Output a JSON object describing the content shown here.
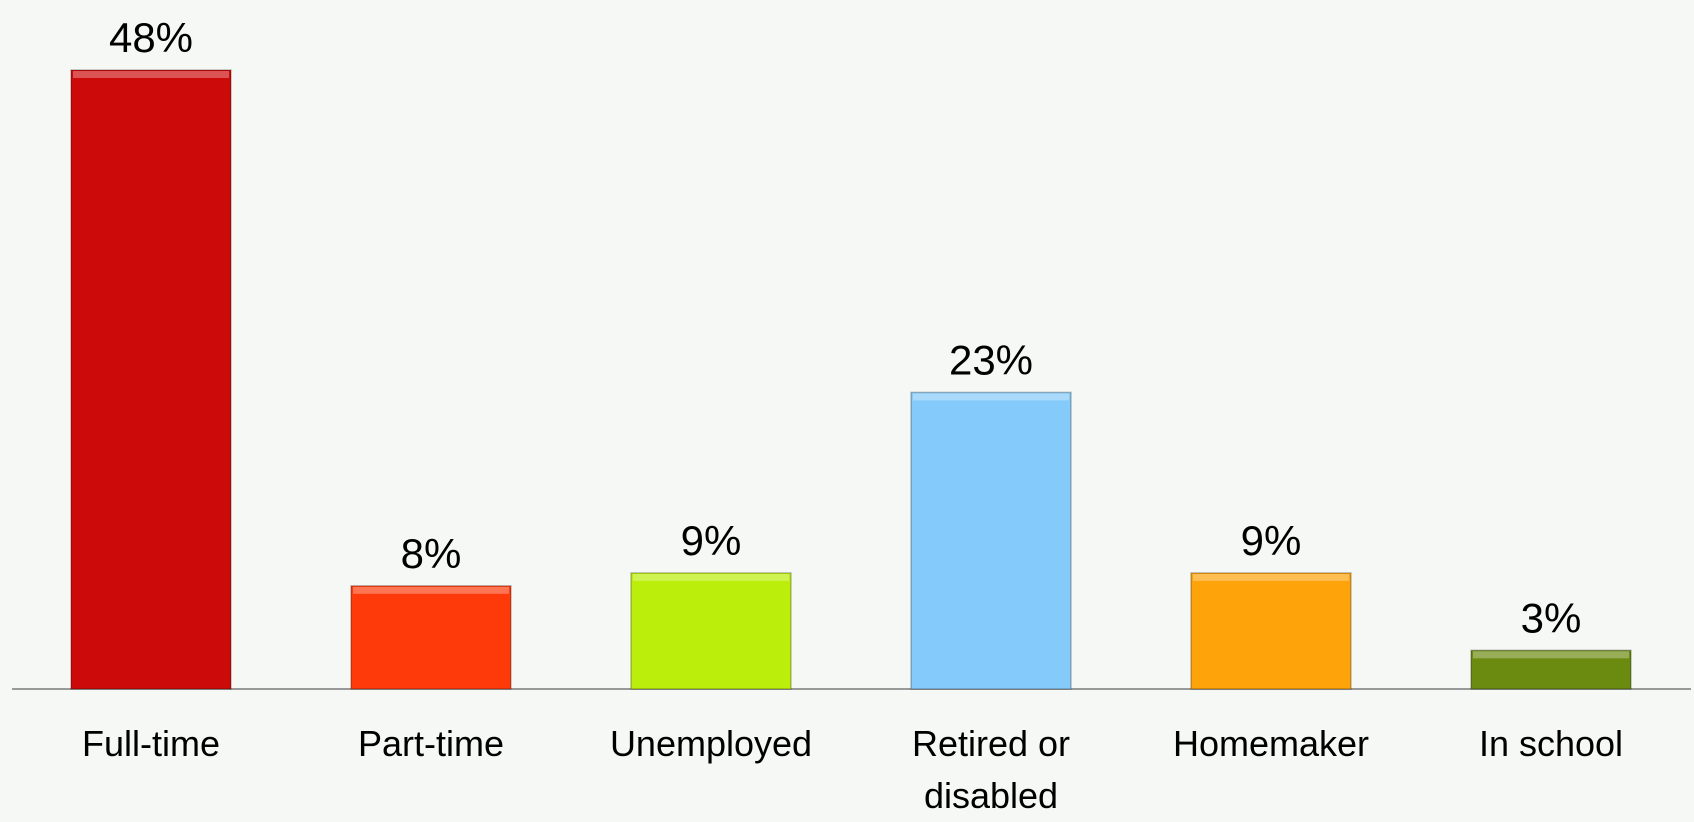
{
  "chart_data": {
    "type": "bar",
    "categories": [
      "Full-time",
      "Part-time",
      "Unemployed",
      "Retired or disabled",
      "Homemaker",
      "In school"
    ],
    "values": [
      48,
      8,
      9,
      23,
      9,
      3
    ],
    "value_labels": [
      "48%",
      "8%",
      "9%",
      "23%",
      "9%",
      "3%"
    ],
    "colors": [
      "#cc0a0a",
      "#ff3a0a",
      "#bbee0a",
      "#84cbfb",
      "#ffa30a",
      "#6b8a10"
    ]
  }
}
